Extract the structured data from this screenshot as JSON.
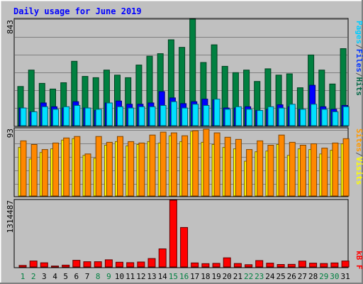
{
  "chart_data": [
    {
      "type": "bar",
      "title": "Daily usage for June 2019",
      "panel": "top",
      "ymax_label": "843",
      "ylim": [
        0,
        843
      ],
      "side_legend": [
        {
          "label": "Pages",
          "color": "#00ccff"
        },
        {
          "label": "/",
          "color": "#555555"
        },
        {
          "label": "Files",
          "color": "#0033ff"
        },
        {
          "label": "/",
          "color": "#555555"
        },
        {
          "label": "Hits",
          "color": "#006644"
        }
      ],
      "categories": [
        "1",
        "2",
        "3",
        "4",
        "5",
        "6",
        "7",
        "8",
        "9",
        "10",
        "11",
        "12",
        "13",
        "14",
        "15",
        "16",
        "17",
        "18",
        "19",
        "20",
        "21",
        "22",
        "23",
        "24",
        "25",
        "26",
        "27",
        "28",
        "29",
        "30",
        "31"
      ],
      "series": [
        {
          "name": "Hits",
          "color": "#008040",
          "values": [
            310,
            440,
            335,
            290,
            340,
            510,
            390,
            380,
            440,
            400,
            380,
            480,
            550,
            570,
            680,
            620,
            843,
            500,
            640,
            470,
            420,
            440,
            350,
            450,
            400,
            410,
            300,
            560,
            440,
            330,
            610
          ]
        },
        {
          "name": "Files",
          "color": "#0000ff",
          "values": [
            140,
            110,
            180,
            150,
            140,
            190,
            140,
            120,
            180,
            195,
            170,
            170,
            180,
            270,
            220,
            175,
            190,
            210,
            205,
            140,
            140,
            150,
            120,
            130,
            165,
            150,
            130,
            320,
            150,
            130,
            160
          ]
        },
        {
          "name": "Pages",
          "color": "#00e0ff",
          "values": [
            140,
            110,
            150,
            130,
            150,
            160,
            140,
            130,
            180,
            150,
            140,
            150,
            150,
            160,
            190,
            140,
            170,
            160,
            210,
            130,
            150,
            130,
            120,
            150,
            140,
            170,
            130,
            170,
            130,
            110,
            150
          ]
        }
      ]
    },
    {
      "type": "bar",
      "panel": "middle",
      "ymax_label": "93",
      "ylim": [
        0,
        93
      ],
      "side_legend": [
        {
          "label": "Sites",
          "color": "#ff9900"
        },
        {
          "label": "/",
          "color": "#555555"
        },
        {
          "label": "Visits",
          "color": "#ffff00"
        }
      ],
      "categories": [
        "1",
        "2",
        "3",
        "4",
        "5",
        "6",
        "7",
        "8",
        "9",
        "10",
        "11",
        "12",
        "13",
        "14",
        "15",
        "16",
        "17",
        "18",
        "19",
        "20",
        "21",
        "22",
        "23",
        "24",
        "25",
        "26",
        "27",
        "28",
        "29",
        "30",
        "31"
      ],
      "series": [
        {
          "name": "Visits",
          "color": "#ffff00",
          "values": [
            67,
            51,
            60,
            65,
            77,
            79,
            56,
            52,
            70,
            75,
            69,
            71,
            75,
            73,
            83,
            75,
            89,
            74,
            71,
            67,
            65,
            48,
            61,
            62,
            71,
            56,
            65,
            64,
            58,
            63,
            72
          ]
        },
        {
          "name": "Sites",
          "color": "#ff8800",
          "values": [
            76,
            71,
            64,
            73,
            80,
            82,
            58,
            82,
            74,
            82,
            75,
            73,
            84,
            88,
            87,
            83,
            90,
            92,
            87,
            81,
            78,
            64,
            76,
            70,
            84,
            74,
            70,
            72,
            66,
            73,
            79
          ]
        }
      ]
    },
    {
      "type": "bar",
      "panel": "bottom",
      "ymax_label": "1314487",
      "ylim": [
        0,
        1314487
      ],
      "side_legend": [
        {
          "label": "kB F",
          "color": "#ff0000"
        }
      ],
      "categories": [
        "1",
        "2",
        "3",
        "4",
        "5",
        "6",
        "7",
        "8",
        "9",
        "10",
        "11",
        "12",
        "13",
        "14",
        "15",
        "16",
        "17",
        "18",
        "19",
        "20",
        "21",
        "22",
        "23",
        "24",
        "25",
        "26",
        "27",
        "28",
        "29",
        "30",
        "31"
      ],
      "weekend_days": [
        1,
        2,
        8,
        9,
        15,
        16,
        22,
        23,
        29,
        30
      ],
      "series": [
        {
          "name": "kB F",
          "color": "#ff0000",
          "values": [
            31000,
            118000,
            82000,
            18000,
            37000,
            131000,
            104000,
            103000,
            141000,
            94000,
            86000,
            98000,
            167000,
            357000,
            1314487,
            777000,
            80000,
            66000,
            71000,
            180000,
            69000,
            45000,
            126000,
            75000,
            49000,
            52000,
            116000,
            76000,
            68000,
            80000,
            118000
          ]
        }
      ]
    }
  ]
}
